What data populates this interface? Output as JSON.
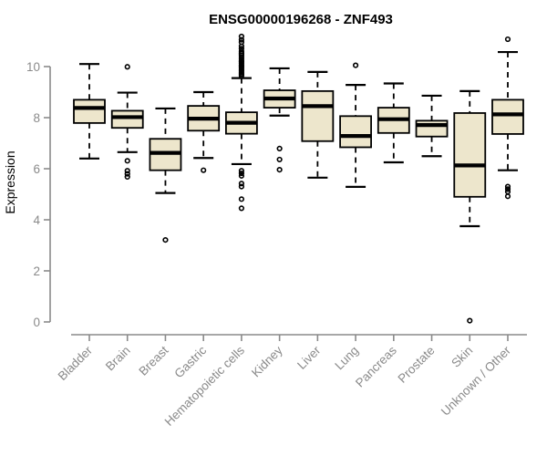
{
  "chart_data": {
    "type": "boxplot",
    "title": "ENSG00000196268 - ZNF493",
    "ylabel": "Expression",
    "xlabel": "",
    "ylim": [
      0,
      10
    ],
    "yticks": [
      0,
      2,
      4,
      6,
      8,
      10
    ],
    "grid": false,
    "legend": "none",
    "categories": [
      "Bladder",
      "Brain",
      "Breast",
      "Gastric",
      "Hematopoietic cells",
      "Kidney",
      "Liver",
      "Lung",
      "Pancreas",
      "Prostate",
      "Skin",
      "Unknown / Other"
    ],
    "boxes": [
      {
        "category": "Bladder",
        "whisker_low": 6.4,
        "q1": 7.79,
        "median": 8.38,
        "q3": 8.7,
        "whisker_high": 10.1,
        "outliers": []
      },
      {
        "category": "Brain",
        "whisker_low": 6.65,
        "q1": 7.6,
        "median": 8.02,
        "q3": 8.27,
        "whisker_high": 8.98,
        "outliers": [
          9.99,
          6.31,
          5.92,
          5.8,
          5.68
        ]
      },
      {
        "category": "Breast",
        "whisker_low": 5.05,
        "q1": 5.94,
        "median": 6.62,
        "q3": 7.17,
        "whisker_high": 8.36,
        "outliers": [
          3.21
        ]
      },
      {
        "category": "Gastric",
        "whisker_low": 6.42,
        "q1": 7.49,
        "median": 7.96,
        "q3": 8.46,
        "whisker_high": 9.0,
        "outliers": [
          5.94
        ]
      },
      {
        "category": "Hematopoietic cells",
        "whisker_low": 6.18,
        "q1": 7.37,
        "median": 7.8,
        "q3": 8.21,
        "whisker_high": 9.55,
        "outliers": [
          9.64,
          9.7,
          9.76,
          9.82,
          9.88,
          9.94,
          10.0,
          10.06,
          10.12,
          10.18,
          10.24,
          10.31,
          10.38,
          10.45,
          10.52,
          10.6,
          10.7,
          10.8,
          10.95,
          11.05,
          11.18,
          5.92,
          5.82,
          5.72,
          5.42,
          5.3,
          4.81,
          4.45
        ]
      },
      {
        "category": "Kidney",
        "whisker_low": 8.08,
        "q1": 8.39,
        "median": 8.75,
        "q3": 9.07,
        "whisker_high": 9.93,
        "outliers": [
          6.79,
          6.36,
          5.96
        ]
      },
      {
        "category": "Liver",
        "whisker_low": 5.65,
        "q1": 7.08,
        "median": 8.45,
        "q3": 9.04,
        "whisker_high": 9.79,
        "outliers": []
      },
      {
        "category": "Lung",
        "whisker_low": 5.29,
        "q1": 6.84,
        "median": 7.28,
        "q3": 8.06,
        "whisker_high": 9.28,
        "outliers": [
          10.05
        ]
      },
      {
        "category": "Pancreas",
        "whisker_low": 6.25,
        "q1": 7.4,
        "median": 7.94,
        "q3": 8.39,
        "whisker_high": 9.34,
        "outliers": []
      },
      {
        "category": "Prostate",
        "whisker_low": 6.49,
        "q1": 7.26,
        "median": 7.71,
        "q3": 7.88,
        "whisker_high": 8.86,
        "outliers": []
      },
      {
        "category": "Skin",
        "whisker_low": 3.75,
        "q1": 4.9,
        "median": 6.13,
        "q3": 8.18,
        "whisker_high": 9.04,
        "outliers": [
          0.05
        ]
      },
      {
        "category": "Unknown / Other",
        "whisker_low": 5.94,
        "q1": 7.36,
        "median": 8.13,
        "q3": 8.7,
        "whisker_high": 10.57,
        "outliers": [
          11.07,
          5.3,
          5.2,
          5.1,
          4.92
        ]
      }
    ],
    "colors": {
      "box_fill": "#EDE6CC",
      "box_stroke": "#000000",
      "median": "#000000",
      "whisker": "#000000",
      "outlier": "#000000",
      "axis_line": "#8A8A8A",
      "axis_text": "#8A8A8A",
      "title": "#000000",
      "background": "#FFFFFF"
    }
  }
}
